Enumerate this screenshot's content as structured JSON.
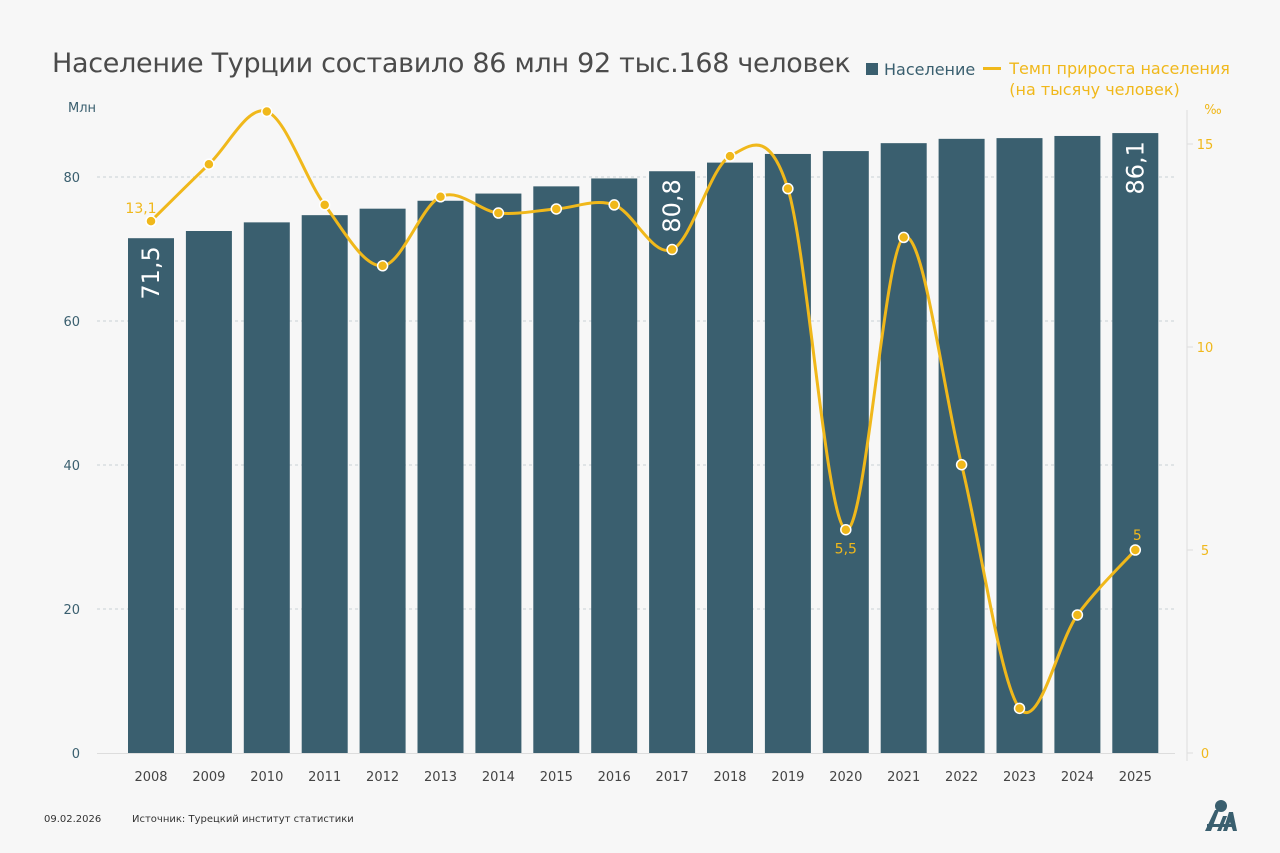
{
  "title": "Население Турции составило 86 млн 92 тыс.168 человек",
  "legend": {
    "population": "Население",
    "rate_line1": "Темп прироста населения",
    "rate_line2": "(на тысячу человек)"
  },
  "footer": {
    "date": "09.02.2026",
    "source": "Источник: Турецкий институт статистики"
  },
  "logo": "AA",
  "colors": {
    "bar": "#3a5f6f",
    "line": "#f0b81b",
    "background": "#f7f7f7",
    "axis_text": "#3a5f6f"
  },
  "chart_data": {
    "type": "bar+line",
    "categories": [
      "2008",
      "2009",
      "2010",
      "2011",
      "2012",
      "2013",
      "2014",
      "2015",
      "2016",
      "2017",
      "2018",
      "2019",
      "2020",
      "2021",
      "2022",
      "2023",
      "2024",
      "2025"
    ],
    "series": [
      {
        "name": "Население",
        "type": "bar",
        "axis": "left",
        "values": [
          71.5,
          72.5,
          73.7,
          74.7,
          75.6,
          76.7,
          77.7,
          78.7,
          79.8,
          80.8,
          82.0,
          83.2,
          83.6,
          84.7,
          85.3,
          85.4,
          85.7,
          86.1
        ],
        "data_labels": {
          "0": "71,5",
          "9": "80,8",
          "17": "86,1"
        }
      },
      {
        "name": "Темп прироста населения (на тысячу человек)",
        "type": "line",
        "axis": "right",
        "values": [
          13.1,
          14.5,
          15.8,
          13.5,
          12.0,
          13.7,
          13.3,
          13.4,
          13.5,
          12.4,
          14.7,
          13.9,
          5.5,
          12.7,
          7.1,
          1.1,
          3.4,
          5.0
        ],
        "data_labels": {
          "0": "13,1",
          "12": "5,5",
          "17": "5"
        }
      }
    ],
    "left_axis": {
      "label": "Млн",
      "range": [
        0,
        86.1
      ],
      "ticks": [
        0,
        20,
        40,
        60,
        80
      ]
    },
    "right_axis": {
      "label": "‰",
      "range": [
        0,
        15.8
      ],
      "ticks": [
        0,
        5,
        10,
        15
      ]
    },
    "grid": "horizontal dashed",
    "legend_position": "top-right"
  }
}
